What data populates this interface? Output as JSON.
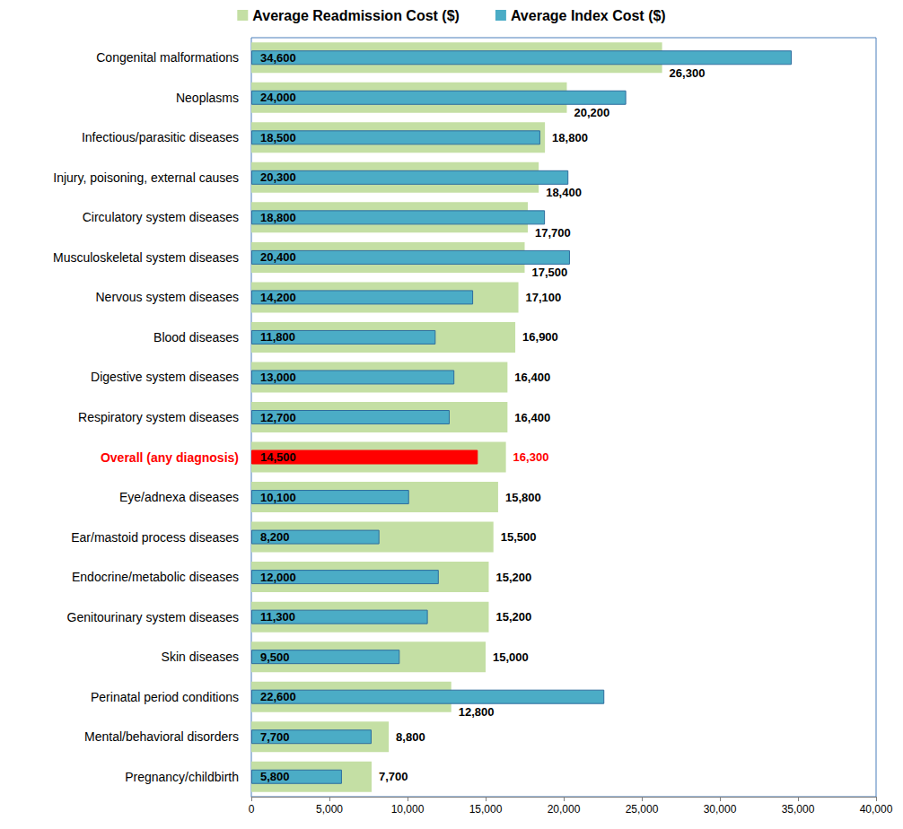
{
  "chart_data": {
    "type": "bar",
    "orientation": "horizontal",
    "categories": [
      "Congenital malformations",
      "Neoplasms",
      "Infectious/parasitic diseases",
      "Injury, poisoning, external causes",
      "Circulatory system diseases",
      "Musculoskeletal system diseases",
      "Nervous system diseases",
      "Blood diseases",
      "Digestive system diseases",
      "Respiratory system diseases",
      "Overall (any diagnosis)",
      "Eye/adnexa diseases",
      "Ear/mastoid process diseases",
      "Endocrine/metabolic diseases",
      "Genitourinary system diseases",
      "Skin diseases",
      "Perinatal period conditions",
      "Mental/behavioral disorders",
      "Pregnancy/childbirth"
    ],
    "series": [
      {
        "name": "Average Readmission Cost ($)",
        "color": "#c4dfa4",
        "values": [
          26300,
          20200,
          18800,
          18400,
          17700,
          17500,
          17100,
          16900,
          16400,
          16400,
          16300,
          15800,
          15500,
          15200,
          15200,
          15000,
          12800,
          8800,
          7700
        ],
        "value_labels": [
          "26,300",
          "20,200",
          "18,800",
          "18,400",
          "17,700",
          "17,500",
          "17,100",
          "16,900",
          "16,400",
          "16,400",
          "16,300",
          "15,800",
          "15,500",
          "15,200",
          "15,200",
          "15,000",
          "12,800",
          "8,800",
          "7,700"
        ]
      },
      {
        "name": "Average Index Cost ($)",
        "color": "#4bacc6",
        "colors": [
          "#4bacc6",
          "#4bacc6",
          "#4bacc6",
          "#4bacc6",
          "#4bacc6",
          "#4bacc6",
          "#4bacc6",
          "#4bacc6",
          "#4bacc6",
          "#4bacc6",
          "#ff0000",
          "#4bacc6",
          "#4bacc6",
          "#4bacc6",
          "#4bacc6",
          "#4bacc6",
          "#4bacc6",
          "#4bacc6",
          "#4bacc6"
        ],
        "values": [
          34600,
          24000,
          18500,
          20300,
          18800,
          20400,
          14200,
          11800,
          13000,
          12700,
          14500,
          10100,
          8200,
          12000,
          11300,
          9500,
          22600,
          7700,
          5800
        ],
        "value_labels": [
          "34,600",
          "24,000",
          "18,500",
          "20,300",
          "18,800",
          "20,400",
          "14,200",
          "11,800",
          "13,000",
          "12,700",
          "14,500",
          "10,100",
          "8,200",
          "12,000",
          "11,300",
          "9,500",
          "22,600",
          "7,700",
          "5,800"
        ]
      }
    ],
    "xlim": [
      0,
      40000
    ],
    "xticks": [
      0,
      {
        "value": 5000,
        "label": "5,000"
      },
      {
        "value": 10000,
        "label": "10,000"
      },
      {
        "value": 15000,
        "label": "15,000"
      },
      {
        "value": 20000,
        "label": "20,000"
      },
      {
        "value": 25000,
        "label": "25,000"
      },
      {
        "value": 30000,
        "label": "30,000"
      },
      {
        "value": 35000,
        "label": "35,000"
      },
      {
        "value": 40000,
        "label": "40,000"
      }
    ],
    "grid": false,
    "legend": "top",
    "data_labels": true
  }
}
